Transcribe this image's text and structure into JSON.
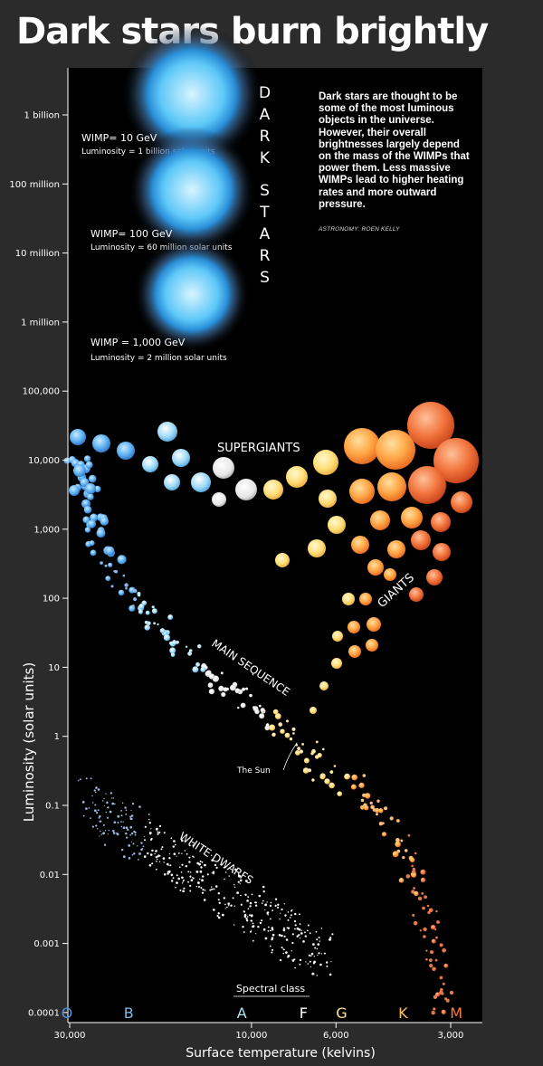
{
  "title": "Dark stars burn brightly",
  "caption": "Dark stars are thought to be some of the most luminous objects in the universe. However, their overall brightnesses largely depend on the mass of the WIMPs that power them. Less massive WIMPs lead to higher heating rates and more outward pressure.",
  "credit": "ASTRONOMY: ROEN KELLY",
  "colors": {
    "background": "#2b2b2b",
    "plot": "#000000",
    "dark_star": "#3fa9f5"
  },
  "chart_data": {
    "type": "scatter",
    "title": "Dark stars burn brightly",
    "xlabel": "Surface temperature (kelvins)",
    "ylabel": "Luminosity (solar units)",
    "x_scale": "log",
    "x_reversed": true,
    "y_scale": "log",
    "xlim": [
      32000,
      2700
    ],
    "ylim": [
      0.0001,
      3000000000
    ],
    "x_ticks": [
      {
        "value": 30000,
        "label": "30,000"
      },
      {
        "value": 10000,
        "label": "10,000"
      },
      {
        "value": 6000,
        "label": "6,000"
      },
      {
        "value": 3000,
        "label": "3,000"
      }
    ],
    "y_ticks": [
      {
        "value": 1000000000,
        "label": "1 billion"
      },
      {
        "value": 100000000,
        "label": "100 million"
      },
      {
        "value": 10000000,
        "label": "10 million"
      },
      {
        "value": 1000000,
        "label": "1 million"
      },
      {
        "value": 100000,
        "label": "100,000"
      },
      {
        "value": 10000,
        "label": "10,000"
      },
      {
        "value": 1000,
        "label": "1,000"
      },
      {
        "value": 100,
        "label": "100"
      },
      {
        "value": 10,
        "label": "10"
      },
      {
        "value": 1,
        "label": "1"
      },
      {
        "value": 0.1,
        "label": "0.1"
      },
      {
        "value": 0.01,
        "label": "0.01"
      },
      {
        "value": 0.001,
        "label": "0.001"
      },
      {
        "value": 0.0001,
        "label": "0.0001"
      }
    ],
    "spectral_title": "Spectral class",
    "spectral_classes": [
      {
        "label": "O",
        "temp": 30500,
        "color": "#4a90e2"
      },
      {
        "label": "B",
        "temp": 21000,
        "color": "#7fb8ea"
      },
      {
        "label": "A",
        "temp": 10600,
        "color": "#aee3f5"
      },
      {
        "label": "F",
        "temp": 7300,
        "color": "#ffffff"
      },
      {
        "label": "G",
        "temp": 5800,
        "color": "#ffe28a"
      },
      {
        "label": "K",
        "temp": 4000,
        "color": "#ffc15c"
      },
      {
        "label": "M",
        "temp": 2900,
        "color": "#ff7a3c"
      }
    ],
    "dark_stars_label": "DARK STARS",
    "dark_stars": [
      {
        "wimp": "WIMP= 10 GeV",
        "luminosity": "Luminosity = 1 billion solar units",
        "lum_value": 1000000000,
        "temp": 14000
      },
      {
        "wimp": "WIMP= 100 GeV",
        "luminosity": "Luminosity = 60 million solar units",
        "lum_value": 60000000,
        "temp": 14000
      },
      {
        "wimp": "WIMP = 1,000 GeV",
        "luminosity": "Luminosity = 2 million solar units",
        "lum_value": 2000000,
        "temp": 14000
      }
    ],
    "region_labels": [
      {
        "text": "SUPERGIANTS",
        "temp": 8000,
        "lum": 18000,
        "angle": 0
      },
      {
        "text": "GIANTS",
        "temp": 3600,
        "lum": 120,
        "angle": -40
      },
      {
        "text": "MAIN SEQUENCE",
        "temp": 9000,
        "lum": 10,
        "angle": 32
      },
      {
        "text": "WHITE DWARFS",
        "temp": 11000,
        "lum": 0.01,
        "angle": 32
      }
    ],
    "sun": {
      "label": "The Sun",
      "temp": 5778,
      "lum": 1
    }
  }
}
